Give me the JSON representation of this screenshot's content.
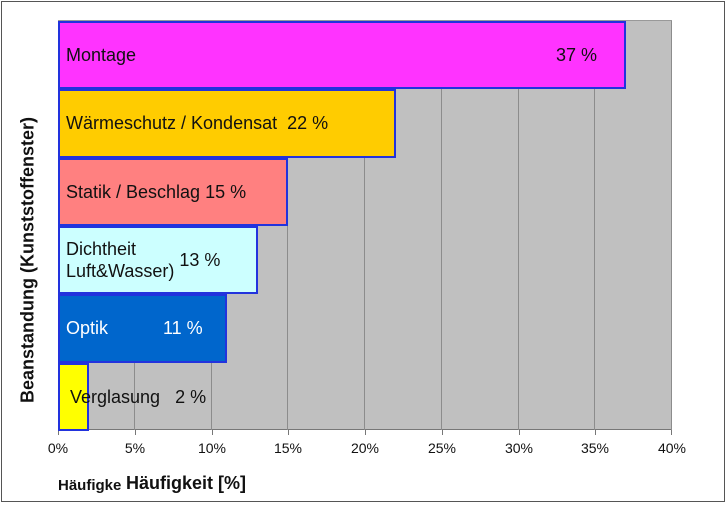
{
  "chart_data": {
    "type": "bar",
    "orientation": "horizontal",
    "title": "",
    "xlabel": "Häufigkeit [%]",
    "xlabel_truncated_prefix": "Häufigkei",
    "ylabel": "Beanstandung (Kunststoffenster)",
    "xlim": [
      0,
      40
    ],
    "xticks": [
      "0%",
      "5%",
      "10%",
      "15%",
      "20%",
      "25%",
      "30%",
      "35%",
      "40%"
    ],
    "grid": "vertical",
    "legend": "none",
    "categories": [
      "Montage",
      "Wärmeschutz / Kondensat",
      "Statik / Beschlag",
      "Dichtheit Luft&Wasser)",
      "Optik",
      "Verglasung"
    ],
    "values": [
      37,
      22,
      15,
      13,
      11,
      2
    ],
    "bars": [
      {
        "label": "Montage",
        "value": 37,
        "value_label": "37 %",
        "color": "#ff33ff",
        "text_color": "#111111"
      },
      {
        "label": "Wärmeschutz / Kondensat",
        "value": 22,
        "value_label": "22 %",
        "color": "#ffcc00",
        "text_color": "#111111"
      },
      {
        "label": "Statik / Beschlag",
        "value": 15,
        "value_label": "15 %",
        "color": "#ff8080",
        "text_color": "#111111"
      },
      {
        "label": "Dichtheit\nLuft&Wasser)",
        "value": 13,
        "value_label": "13 %",
        "color": "#ccffff",
        "text_color": "#111111"
      },
      {
        "label": "Optik",
        "value": 11,
        "value_label": "11 %",
        "color": "#0066cc",
        "text_color": "#ffffff"
      },
      {
        "label": "Verglasung",
        "value": 2,
        "value_label": "2 %",
        "color": "#ffff00",
        "text_color": "#111111"
      }
    ],
    "colors": {
      "plot_background": "#c0c0c0",
      "bar_border": "#2233dd",
      "gridline": "#8c8c8c"
    }
  }
}
